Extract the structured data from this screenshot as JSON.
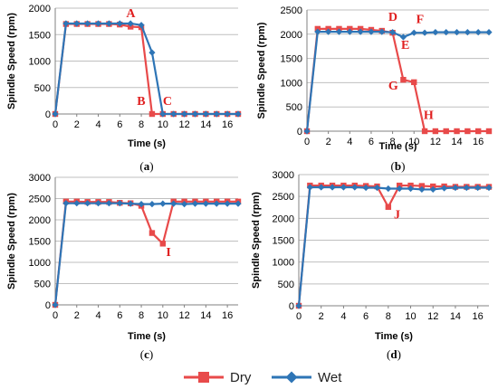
{
  "chart_data": [
    {
      "type": "line",
      "panel_label": "a",
      "xlabel": "Time (s)",
      "ylabel": "Spindle Speed (rpm)",
      "xlim": [
        0,
        17
      ],
      "ylim": [
        0,
        2000
      ],
      "xticks": [
        0,
        2,
        4,
        6,
        8,
        10,
        12,
        14,
        16
      ],
      "yticks": [
        0,
        500,
        1000,
        1500,
        2000
      ],
      "grid": "horizontal",
      "series": [
        {
          "name": "Dry",
          "color": "#e84a4a",
          "marker": "square",
          "x": [
            0,
            1,
            2,
            3,
            4,
            5,
            6,
            7,
            8,
            9,
            10,
            11,
            12,
            13,
            14,
            15,
            16,
            17
          ],
          "y": [
            0,
            1700,
            1700,
            1700,
            1700,
            1700,
            1690,
            1650,
            1640,
            0,
            0,
            0,
            0,
            0,
            0,
            0,
            0,
            0
          ]
        },
        {
          "name": "Wet",
          "color": "#2e75b6",
          "marker": "diamond",
          "x": [
            0,
            1,
            2,
            3,
            4,
            5,
            6,
            7,
            8,
            9,
            10,
            11,
            12,
            13,
            14,
            15,
            16,
            17
          ],
          "y": [
            0,
            1710,
            1710,
            1710,
            1710,
            1710,
            1710,
            1710,
            1680,
            1160,
            0,
            0,
            0,
            0,
            0,
            0,
            0,
            0
          ]
        }
      ],
      "annotations": [
        {
          "text": "A",
          "x": 6.6,
          "y": 1830
        },
        {
          "text": "B",
          "x": 7.6,
          "y": 170
        },
        {
          "text": "C",
          "x": 10.0,
          "y": 170
        }
      ]
    },
    {
      "type": "line",
      "panel_label": "b",
      "xlabel": "Time (s)",
      "ylabel": "Spindle Speed (rpm)",
      "xlim": [
        0,
        17
      ],
      "ylim": [
        0,
        2500
      ],
      "xticks": [
        0,
        2,
        4,
        6,
        8,
        10,
        12,
        14,
        16
      ],
      "yticks": [
        0,
        500,
        1000,
        1500,
        2000,
        2500
      ],
      "grid": "horizontal",
      "series": [
        {
          "name": "Dry",
          "color": "#e84a4a",
          "marker": "square",
          "x": [
            0,
            1,
            2,
            3,
            4,
            5,
            6,
            7,
            8,
            9,
            10,
            11,
            12,
            13,
            14,
            15,
            16,
            17
          ],
          "y": [
            0,
            2110,
            2110,
            2110,
            2110,
            2110,
            2090,
            2070,
            2030,
            1060,
            1010,
            0,
            0,
            0,
            0,
            0,
            0,
            0
          ]
        },
        {
          "name": "Wet",
          "color": "#2e75b6",
          "marker": "diamond",
          "x": [
            0,
            1,
            2,
            3,
            4,
            5,
            6,
            7,
            8,
            9,
            10,
            11,
            12,
            13,
            14,
            15,
            16,
            17
          ],
          "y": [
            0,
            2050,
            2050,
            2050,
            2050,
            2050,
            2050,
            2050,
            2040,
            1940,
            2030,
            2030,
            2040,
            2040,
            2040,
            2040,
            2040,
            2040
          ]
        }
      ],
      "annotations": [
        {
          "text": "D",
          "x": 7.6,
          "y": 2280
        },
        {
          "text": "F",
          "x": 10.2,
          "y": 2230
        },
        {
          "text": "E",
          "x": 8.8,
          "y": 1700
        },
        {
          "text": "G",
          "x": 7.6,
          "y": 860
        },
        {
          "text": "H",
          "x": 10.9,
          "y": 250
        }
      ]
    },
    {
      "type": "line",
      "panel_label": "c",
      "xlabel": "Time (s)",
      "ylabel": "Spindle Speed (rpm)",
      "xlim": [
        0,
        17
      ],
      "ylim": [
        0,
        3000
      ],
      "xticks": [
        0,
        2,
        4,
        6,
        8,
        10,
        12,
        14,
        16
      ],
      "yticks": [
        0,
        500,
        1000,
        1500,
        2000,
        2500,
        3000
      ],
      "grid": "horizontal",
      "series": [
        {
          "name": "Dry",
          "color": "#e84a4a",
          "marker": "square",
          "x": [
            0,
            1,
            2,
            3,
            4,
            5,
            6,
            7,
            8,
            9,
            10,
            11,
            12,
            13,
            14,
            15,
            16,
            17
          ],
          "y": [
            0,
            2430,
            2430,
            2420,
            2420,
            2420,
            2400,
            2390,
            2330,
            1690,
            1440,
            2430,
            2430,
            2430,
            2430,
            2430,
            2430,
            2430
          ]
        },
        {
          "name": "Wet",
          "color": "#2e75b6",
          "marker": "diamond",
          "x": [
            0,
            1,
            2,
            3,
            4,
            5,
            6,
            7,
            8,
            9,
            10,
            11,
            12,
            13,
            14,
            15,
            16,
            17
          ],
          "y": [
            0,
            2390,
            2390,
            2390,
            2390,
            2390,
            2390,
            2380,
            2370,
            2370,
            2380,
            2380,
            2370,
            2380,
            2380,
            2380,
            2380,
            2380
          ]
        }
      ],
      "annotations": [
        {
          "text": "I",
          "x": 10.3,
          "y": 1150
        }
      ]
    },
    {
      "type": "line",
      "panel_label": "d",
      "xlabel": "Time (s)",
      "ylabel": "Spindle Speed (rpm)",
      "xlim": [
        0,
        17
      ],
      "ylim": [
        0,
        3000
      ],
      "xticks": [
        0,
        2,
        4,
        6,
        8,
        10,
        12,
        14,
        16
      ],
      "yticks": [
        0,
        500,
        1000,
        1500,
        2000,
        2500,
        3000
      ],
      "grid": "horizontal",
      "series": [
        {
          "name": "Dry",
          "color": "#e84a4a",
          "marker": "square",
          "x": [
            0,
            1,
            2,
            3,
            4,
            5,
            6,
            7,
            8,
            9,
            10,
            11,
            12,
            13,
            14,
            15,
            16,
            17
          ],
          "y": [
            0,
            2750,
            2750,
            2750,
            2750,
            2750,
            2740,
            2730,
            2260,
            2750,
            2750,
            2740,
            2730,
            2730,
            2720,
            2720,
            2720,
            2720
          ]
        },
        {
          "name": "Wet",
          "color": "#2e75b6",
          "marker": "diamond",
          "x": [
            0,
            1,
            2,
            3,
            4,
            5,
            6,
            7,
            8,
            9,
            10,
            11,
            12,
            13,
            14,
            15,
            16,
            17
          ],
          "y": [
            0,
            2710,
            2710,
            2710,
            2710,
            2710,
            2700,
            2700,
            2680,
            2680,
            2680,
            2660,
            2660,
            2690,
            2700,
            2700,
            2700,
            2700
          ]
        }
      ],
      "annotations": [
        {
          "text": "J",
          "x": 8.5,
          "y": 2000
        }
      ]
    }
  ],
  "legend": {
    "placement": "bottom-center",
    "items": [
      {
        "name": "Dry",
        "color": "#e84a4a",
        "marker": "square"
      },
      {
        "name": "Wet",
        "color": "#2e75b6",
        "marker": "diamond"
      }
    ]
  }
}
